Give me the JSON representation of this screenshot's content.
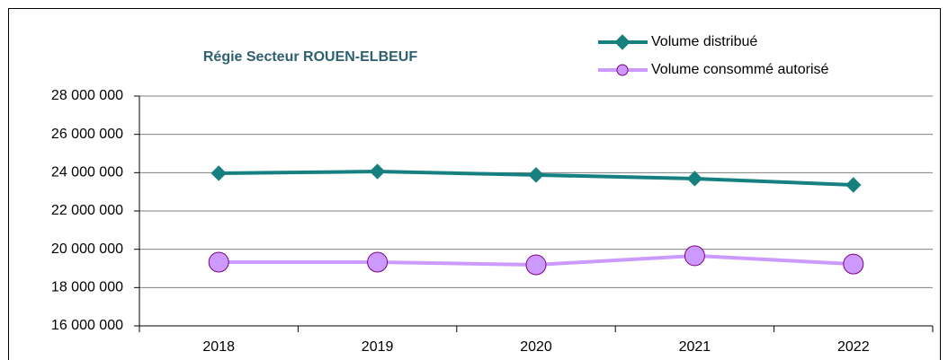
{
  "chart_data": {
    "type": "line",
    "title": "Régie Secteur ROUEN-ELBEUF",
    "categories": [
      "2018",
      "2019",
      "2020",
      "2021",
      "2022"
    ],
    "series": [
      {
        "name": "Volume distribué",
        "color": "#168080",
        "values": [
          23970000,
          24060000,
          23880000,
          23690000,
          23360000
        ]
      },
      {
        "name": "Volume consommé autorisé",
        "color": "#cc99ff",
        "values": [
          19330000,
          19330000,
          19190000,
          19660000,
          19230000
        ]
      }
    ],
    "ylim": [
      16000000,
      28000000
    ],
    "yticks": [
      {
        "value": 16000000,
        "label": "16 000 000"
      },
      {
        "value": 18000000,
        "label": "18 000 000"
      },
      {
        "value": 20000000,
        "label": "20 000 000"
      },
      {
        "value": 22000000,
        "label": "22 000 000"
      },
      {
        "value": 24000000,
        "label": "24 000 000"
      },
      {
        "value": 26000000,
        "label": "26 000 000"
      },
      {
        "value": 28000000,
        "label": "28 000 000"
      }
    ],
    "grid": true
  }
}
